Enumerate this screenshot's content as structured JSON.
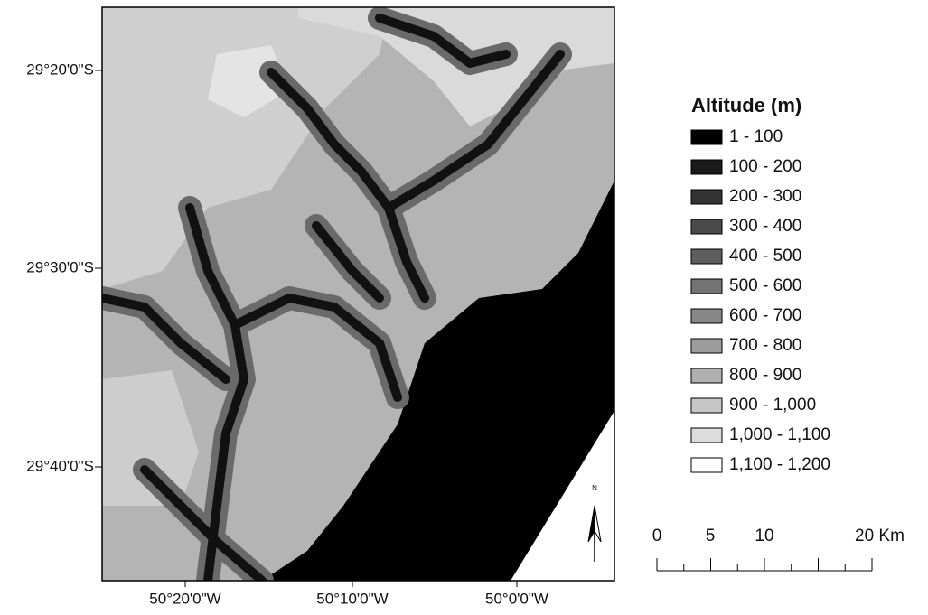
{
  "map": {
    "latitude_labels": [
      "29°20'0\"S",
      "29°30'0\"S",
      "29°40'0\"S"
    ],
    "longitude_labels": [
      "50°20'0\"W",
      "50°10'0\"W",
      "50°0'0\"W"
    ],
    "north_label": "N",
    "legend": {
      "title": "Altitude (m)",
      "items": [
        {
          "label": "1 - 100",
          "color": "#000000"
        },
        {
          "label": "100 - 200",
          "color": "#1a1a1a"
        },
        {
          "label": "200 - 300",
          "color": "#333333"
        },
        {
          "label": "300 - 400",
          "color": "#4a4a4a"
        },
        {
          "label": "400 - 500",
          "color": "#5e5e5e"
        },
        {
          "label": "500 - 600",
          "color": "#737373"
        },
        {
          "label": "600 - 700",
          "color": "#878787"
        },
        {
          "label": "700 - 800",
          "color": "#9c9c9c"
        },
        {
          "label": "800 - 900",
          "color": "#b0b0b0"
        },
        {
          "label": "900 - 1,000",
          "color": "#c6c6c6"
        },
        {
          "label": "1,000 - 1,100",
          "color": "#dcdcdc"
        },
        {
          "label": "1,100 - 1,200",
          "color": "#ffffff"
        }
      ]
    },
    "scale_bar": {
      "labels": [
        "0",
        "5",
        "10",
        "20 Km"
      ]
    }
  }
}
